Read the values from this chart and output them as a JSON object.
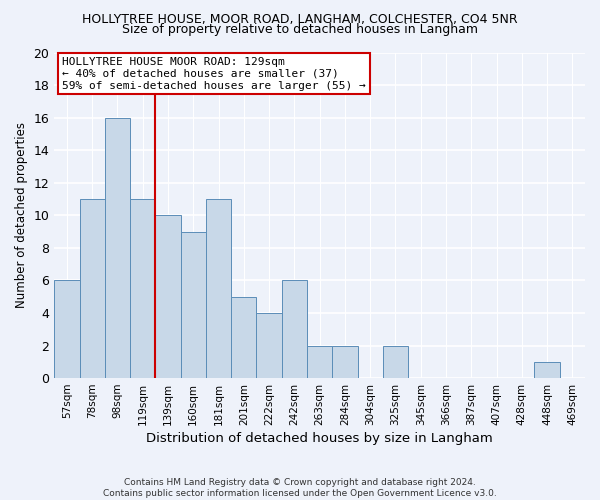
{
  "title": "HOLLYTREE HOUSE, MOOR ROAD, LANGHAM, COLCHESTER, CO4 5NR",
  "subtitle": "Size of property relative to detached houses in Langham",
  "xlabel": "Distribution of detached houses by size in Langham",
  "ylabel": "Number of detached properties",
  "footer_line1": "Contains HM Land Registry data © Crown copyright and database right 2024.",
  "footer_line2": "Contains public sector information licensed under the Open Government Licence v3.0.",
  "categories": [
    "57sqm",
    "78sqm",
    "98sqm",
    "119sqm",
    "139sqm",
    "160sqm",
    "181sqm",
    "201sqm",
    "222sqm",
    "242sqm",
    "263sqm",
    "284sqm",
    "304sqm",
    "325sqm",
    "345sqm",
    "366sqm",
    "387sqm",
    "407sqm",
    "428sqm",
    "448sqm",
    "469sqm"
  ],
  "values": [
    6,
    11,
    16,
    11,
    10,
    9,
    11,
    5,
    4,
    6,
    2,
    2,
    0,
    2,
    0,
    0,
    0,
    0,
    0,
    1,
    0
  ],
  "bar_color": "#c8d8e8",
  "bar_edge_color": "#5b8db8",
  "background_color": "#eef2fa",
  "grid_color": "#ffffff",
  "ylim": [
    0,
    20
  ],
  "yticks": [
    0,
    2,
    4,
    6,
    8,
    10,
    12,
    14,
    16,
    18,
    20
  ],
  "property_label": "HOLLYTREE HOUSE MOOR ROAD: 129sqm",
  "annotation_line1": "← 40% of detached houses are smaller (37)",
  "annotation_line2": "59% of semi-detached houses are larger (55) →",
  "vline_color": "#cc0000",
  "annotation_box_edge": "#cc0000",
  "annotation_box_face": "#ffffff",
  "vline_x": 3.5
}
